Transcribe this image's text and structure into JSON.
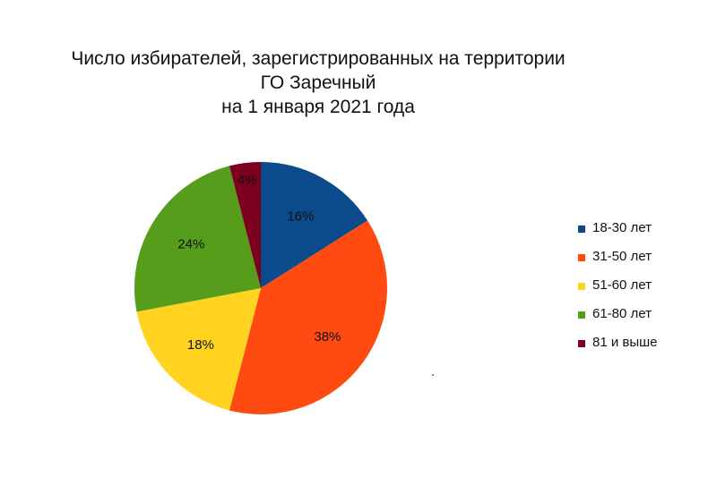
{
  "chart_data": {
    "type": "pie",
    "title_lines": [
      "Число избирателей, зарегистрированных на территории",
      "ГО Заречный",
      "на 1 января 2021 года"
    ],
    "categories": [
      "18-30 лет",
      "31-50 лет",
      "51-60 лет",
      "61-80 лет",
      "81 и выше"
    ],
    "values": [
      16,
      38,
      18,
      24,
      4
    ],
    "data_labels": [
      "16%",
      "38%",
      "18%",
      "24%",
      "4%"
    ],
    "colors": [
      "#0b4a8b",
      "#ff4a12",
      "#ffd320",
      "#579d1c",
      "#7e0021"
    ],
    "legend_position": "right",
    "start_angle": "12 o'clock",
    "direction": "clockwise"
  }
}
